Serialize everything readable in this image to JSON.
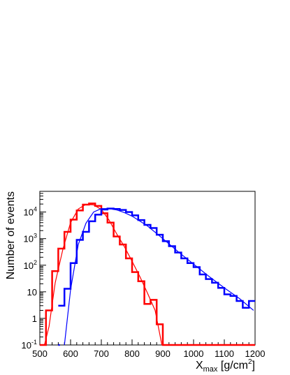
{
  "chart_data": {
    "type": "line",
    "title": "",
    "xlabel": "X",
    "xlabel_sub": "max",
    "xlabel_unit_pre": " [g/cm",
    "xlabel_unit_sup": "2",
    "xlabel_unit_post": "]",
    "ylabel": "Number of events",
    "xlim": [
      500,
      1200
    ],
    "ylim": [
      0.1,
      60000
    ],
    "yscale": "log",
    "grid": false,
    "legend": "none",
    "x_ticks": [
      "500",
      "600",
      "700",
      "800",
      "900",
      "1000",
      "1100",
      "1200"
    ],
    "y_ticks": [
      {
        "base": "10",
        "exp": "-1",
        "value": 0.1
      },
      {
        "base": "1",
        "exp": "",
        "value": 1
      },
      {
        "base": "10",
        "exp": "",
        "value": 10
      },
      {
        "base": "10",
        "exp": "2",
        "value": 100
      },
      {
        "base": "10",
        "exp": "3",
        "value": 1000
      },
      {
        "base": "10",
        "exp": "4",
        "value": 10000
      }
    ],
    "bin_width": 20,
    "series": [
      {
        "color": "#ff0000",
        "style": "histogram",
        "bin_lows": [
          500,
          520,
          540,
          560,
          580,
          600,
          620,
          640,
          660,
          680,
          700,
          720,
          740,
          760,
          780,
          800,
          820,
          840,
          860,
          880,
          900,
          920,
          940,
          960,
          980,
          1000,
          1020,
          1040,
          1060,
          1080,
          1100,
          1120,
          1140,
          1160,
          1180
        ],
        "values": [
          0.1,
          2,
          60,
          420,
          1800,
          5200,
          11500,
          19000,
          21000,
          17000,
          9000,
          4000,
          1200,
          600,
          180,
          55,
          25,
          3.5,
          5,
          0.6,
          0.1,
          0.1,
          0.1,
          0.1,
          0.1,
          0.1,
          0.1,
          0.1,
          0.1,
          0.1,
          0.1,
          0.1,
          0.1,
          0.1,
          0.1
        ]
      },
      {
        "color": "#ff0000",
        "style": "fit",
        "x": [
          515,
          530,
          550,
          575,
          600,
          625,
          650,
          675,
          700,
          725,
          750,
          775,
          800,
          825,
          850,
          875,
          897
        ],
        "values": [
          0.1,
          0.5,
          22,
          400,
          4000,
          13000,
          19500,
          18500,
          12500,
          5000,
          1500,
          500,
          140,
          38,
          9,
          2,
          0.1
        ]
      },
      {
        "color": "#0000ff",
        "style": "histogram",
        "bin_lows": [
          560,
          580,
          600,
          620,
          640,
          660,
          680,
          700,
          720,
          740,
          760,
          780,
          800,
          820,
          840,
          860,
          880,
          900,
          920,
          940,
          960,
          980,
          1000,
          1020,
          1040,
          1060,
          1080,
          1100,
          1120,
          1140,
          1160,
          1180
        ],
        "values": [
          3,
          13,
          120,
          900,
          1800,
          4500,
          8000,
          12500,
          13500,
          13000,
          12000,
          10000,
          7500,
          5000,
          3300,
          2500,
          1400,
          800,
          520,
          300,
          180,
          120,
          85,
          45,
          30,
          22,
          14,
          8,
          7,
          4.5,
          2.5,
          4.5
        ],
        "extra_bins": [
          {
            "low": 560,
            "high": 565,
            "value": 0.1
          }
        ]
      },
      {
        "color": "#0000ff",
        "style": "fit",
        "x": [
          580,
          600,
          625,
          650,
          675,
          700,
          725,
          750,
          775,
          800,
          850,
          900,
          950,
          1000,
          1050,
          1100,
          1150,
          1195
        ],
        "values": [
          0.1,
          12,
          600,
          3800,
          10000,
          13500,
          13500,
          12000,
          9500,
          7000,
          3000,
          1000,
          320,
          110,
          38,
          14,
          5.5,
          2
        ]
      }
    ]
  }
}
